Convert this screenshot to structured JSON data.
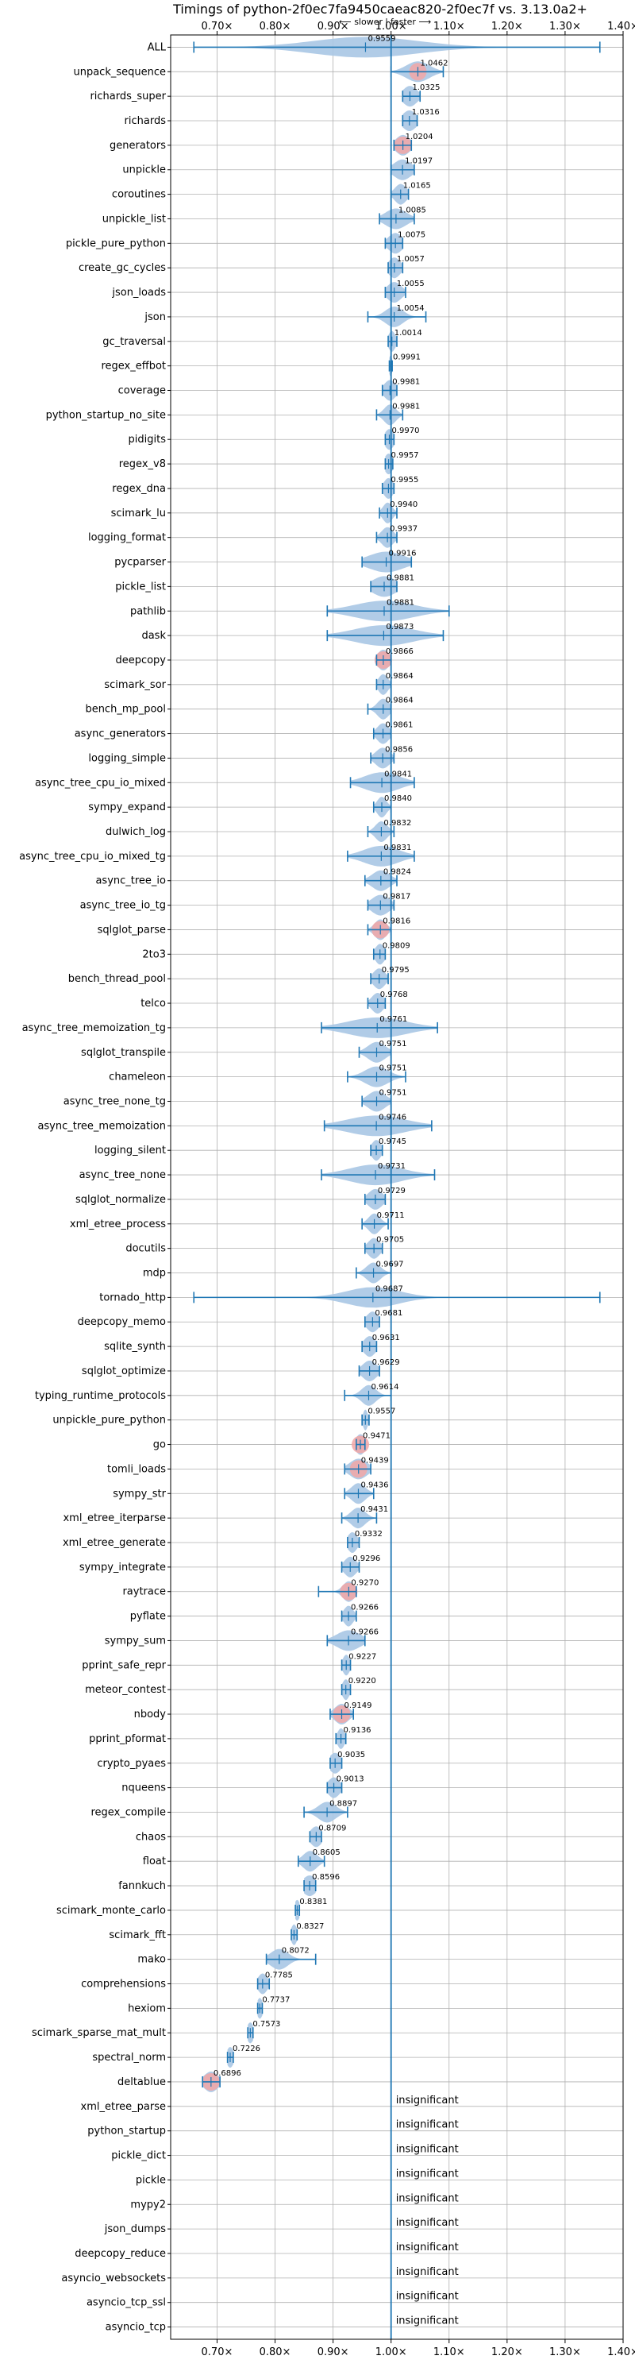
{
  "chart_data": {
    "type": "violin",
    "title": "Timings of python-2f0ec7fa9450caeac820-2f0ec7f vs. 3.13.0a2+",
    "direction_labels": {
      "slower": "⟵ slower",
      "separator": "|",
      "faster": "faster ⟶"
    },
    "xlim": [
      0.62,
      1.4
    ],
    "xticks": [
      0.7,
      0.8,
      0.9,
      1.0,
      1.1,
      1.2,
      1.3,
      1.4
    ],
    "xtick_labels": [
      "0.70×",
      "0.80×",
      "0.90×",
      "1.00×",
      "1.10×",
      "1.20×",
      "1.30×",
      "1.40×"
    ],
    "reference_line": 1.0,
    "colors": {
      "line": "#1f77b4",
      "violin": "#a9c6e4",
      "highlight": "#f2a6a6",
      "grid": "#b0b0b0"
    },
    "insignificant_label": "insignificant",
    "benchmarks": [
      {
        "name": "ALL",
        "value": 0.9559,
        "label": "0.9559",
        "min": 0.66,
        "max": 1.36,
        "spread": 0.09,
        "highlight": false
      },
      {
        "name": "unpack_sequence",
        "value": 1.0462,
        "label": "1.0462",
        "min": 1.0,
        "max": 1.09,
        "spread": 0.02,
        "highlight": true
      },
      {
        "name": "richards_super",
        "value": 1.0325,
        "label": "1.0325",
        "min": 1.02,
        "max": 1.05,
        "spread": 0.012,
        "highlight": false
      },
      {
        "name": "richards",
        "value": 1.0316,
        "label": "1.0316",
        "min": 1.02,
        "max": 1.045,
        "spread": 0.012,
        "highlight": false
      },
      {
        "name": "generators",
        "value": 1.0204,
        "label": "1.0204",
        "min": 1.005,
        "max": 1.035,
        "spread": 0.012,
        "highlight": true
      },
      {
        "name": "unpickle",
        "value": 1.0197,
        "label": "1.0197",
        "min": 1.0,
        "max": 1.04,
        "spread": 0.015,
        "highlight": false
      },
      {
        "name": "coroutines",
        "value": 1.0165,
        "label": "1.0165",
        "min": 1.0,
        "max": 1.03,
        "spread": 0.01,
        "highlight": false
      },
      {
        "name": "unpickle_list",
        "value": 1.0085,
        "label": "1.0085",
        "min": 0.98,
        "max": 1.04,
        "spread": 0.018,
        "highlight": false
      },
      {
        "name": "pickle_pure_python",
        "value": 1.0075,
        "label": "1.0075",
        "min": 0.99,
        "max": 1.02,
        "spread": 0.012,
        "highlight": false
      },
      {
        "name": "create_gc_cycles",
        "value": 1.0057,
        "label": "1.0057",
        "min": 0.995,
        "max": 1.02,
        "spread": 0.01,
        "highlight": false
      },
      {
        "name": "json_loads",
        "value": 1.0055,
        "label": "1.0055",
        "min": 0.99,
        "max": 1.025,
        "spread": 0.012,
        "highlight": false
      },
      {
        "name": "json",
        "value": 1.0054,
        "label": "1.0054",
        "min": 0.96,
        "max": 1.06,
        "spread": 0.015,
        "highlight": false
      },
      {
        "name": "gc_traversal",
        "value": 1.0014,
        "label": "1.0014",
        "min": 0.995,
        "max": 1.01,
        "spread": 0.006,
        "highlight": false
      },
      {
        "name": "regex_effbot",
        "value": 0.9991,
        "label": "0.9991",
        "min": 0.997,
        "max": 1.002,
        "spread": 0.003,
        "highlight": false
      },
      {
        "name": "coverage",
        "value": 0.9981,
        "label": "0.9981",
        "min": 0.985,
        "max": 1.01,
        "spread": 0.01,
        "highlight": false
      },
      {
        "name": "python_startup_no_site",
        "value": 0.9981,
        "label": "0.9981",
        "min": 0.975,
        "max": 1.02,
        "spread": 0.01,
        "highlight": false
      },
      {
        "name": "pidigits",
        "value": 0.997,
        "label": "0.9970",
        "min": 0.99,
        "max": 1.005,
        "spread": 0.008,
        "highlight": false
      },
      {
        "name": "regex_v8",
        "value": 0.9957,
        "label": "0.9957",
        "min": 0.99,
        "max": 1.003,
        "spread": 0.007,
        "highlight": false
      },
      {
        "name": "regex_dna",
        "value": 0.9955,
        "label": "0.9955",
        "min": 0.985,
        "max": 1.005,
        "spread": 0.008,
        "highlight": false
      },
      {
        "name": "scimark_lu",
        "value": 0.994,
        "label": "0.9940",
        "min": 0.98,
        "max": 1.01,
        "spread": 0.008,
        "highlight": false
      },
      {
        "name": "logging_format",
        "value": 0.9937,
        "label": "0.9937",
        "min": 0.975,
        "max": 1.01,
        "spread": 0.01,
        "highlight": false
      },
      {
        "name": "pycparser",
        "value": 0.9916,
        "label": "0.9916",
        "min": 0.95,
        "max": 1.035,
        "spread": 0.03,
        "highlight": false
      },
      {
        "name": "pickle_list",
        "value": 0.9881,
        "label": "0.9881",
        "min": 0.965,
        "max": 1.01,
        "spread": 0.02,
        "highlight": false
      },
      {
        "name": "pathlib",
        "value": 0.9881,
        "label": "0.9881",
        "min": 0.89,
        "max": 1.1,
        "spread": 0.05,
        "highlight": false
      },
      {
        "name": "dask",
        "value": 0.9873,
        "label": "0.9873",
        "min": 0.89,
        "max": 1.09,
        "spread": 0.05,
        "highlight": false
      },
      {
        "name": "deepcopy",
        "value": 0.9866,
        "label": "0.9866",
        "min": 0.975,
        "max": 1.0,
        "spread": 0.01,
        "highlight": true
      },
      {
        "name": "scimark_sor",
        "value": 0.9864,
        "label": "0.9864",
        "min": 0.975,
        "max": 1.0,
        "spread": 0.008,
        "highlight": false
      },
      {
        "name": "bench_mp_pool",
        "value": 0.9864,
        "label": "0.9864",
        "min": 0.96,
        "max": 1.0,
        "spread": 0.01,
        "highlight": false
      },
      {
        "name": "async_generators",
        "value": 0.9861,
        "label": "0.9861",
        "min": 0.97,
        "max": 1.0,
        "spread": 0.01,
        "highlight": false
      },
      {
        "name": "logging_simple",
        "value": 0.9856,
        "label": "0.9856",
        "min": 0.965,
        "max": 1.005,
        "spread": 0.012,
        "highlight": false
      },
      {
        "name": "async_tree_cpu_io_mixed",
        "value": 0.9841,
        "label": "0.9841",
        "min": 0.93,
        "max": 1.04,
        "spread": 0.03,
        "highlight": false
      },
      {
        "name": "sympy_expand",
        "value": 0.984,
        "label": "0.9840",
        "min": 0.97,
        "max": 1.0,
        "spread": 0.008,
        "highlight": false
      },
      {
        "name": "dulwich_log",
        "value": 0.9832,
        "label": "0.9832",
        "min": 0.96,
        "max": 1.005,
        "spread": 0.01,
        "highlight": false
      },
      {
        "name": "async_tree_cpu_io_mixed_tg",
        "value": 0.9831,
        "label": "0.9831",
        "min": 0.925,
        "max": 1.04,
        "spread": 0.03,
        "highlight": false
      },
      {
        "name": "async_tree_io",
        "value": 0.9824,
        "label": "0.9824",
        "min": 0.955,
        "max": 1.01,
        "spread": 0.015,
        "highlight": false
      },
      {
        "name": "async_tree_io_tg",
        "value": 0.9817,
        "label": "0.9817",
        "min": 0.96,
        "max": 1.005,
        "spread": 0.015,
        "highlight": false
      },
      {
        "name": "sqlglot_parse",
        "value": 0.9816,
        "label": "0.9816",
        "min": 0.96,
        "max": 1.0,
        "spread": 0.01,
        "highlight": true
      },
      {
        "name": "2to3",
        "value": 0.9809,
        "label": "0.9809",
        "min": 0.97,
        "max": 0.99,
        "spread": 0.008,
        "highlight": false
      },
      {
        "name": "bench_thread_pool",
        "value": 0.9795,
        "label": "0.9795",
        "min": 0.965,
        "max": 0.995,
        "spread": 0.01,
        "highlight": false
      },
      {
        "name": "telco",
        "value": 0.9768,
        "label": "0.9768",
        "min": 0.96,
        "max": 0.99,
        "spread": 0.01,
        "highlight": false
      },
      {
        "name": "async_tree_memoization_tg",
        "value": 0.9761,
        "label": "0.9761",
        "min": 0.88,
        "max": 1.08,
        "spread": 0.05,
        "highlight": false
      },
      {
        "name": "sqlglot_transpile",
        "value": 0.9751,
        "label": "0.9751",
        "min": 0.945,
        "max": 1.0,
        "spread": 0.015,
        "highlight": false
      },
      {
        "name": "chameleon",
        "value": 0.9751,
        "label": "0.9751",
        "min": 0.925,
        "max": 1.025,
        "spread": 0.02,
        "highlight": false
      },
      {
        "name": "async_tree_none_tg",
        "value": 0.9751,
        "label": "0.9751",
        "min": 0.95,
        "max": 1.0,
        "spread": 0.015,
        "highlight": false
      },
      {
        "name": "async_tree_memoization",
        "value": 0.9746,
        "label": "0.9746",
        "min": 0.885,
        "max": 1.07,
        "spread": 0.05,
        "highlight": false
      },
      {
        "name": "logging_silent",
        "value": 0.9745,
        "label": "0.9745",
        "min": 0.965,
        "max": 0.985,
        "spread": 0.008,
        "highlight": false
      },
      {
        "name": "async_tree_none",
        "value": 0.9731,
        "label": "0.9731",
        "min": 0.88,
        "max": 1.075,
        "spread": 0.045,
        "highlight": false
      },
      {
        "name": "sqlglot_normalize",
        "value": 0.9729,
        "label": "0.9729",
        "min": 0.955,
        "max": 0.99,
        "spread": 0.012,
        "highlight": false
      },
      {
        "name": "xml_etree_process",
        "value": 0.9711,
        "label": "0.9711",
        "min": 0.95,
        "max": 0.995,
        "spread": 0.01,
        "highlight": false
      },
      {
        "name": "docutils",
        "value": 0.9705,
        "label": "0.9705",
        "min": 0.955,
        "max": 0.985,
        "spread": 0.01,
        "highlight": false
      },
      {
        "name": "mdp",
        "value": 0.9697,
        "label": "0.9697",
        "min": 0.94,
        "max": 1.0,
        "spread": 0.012,
        "highlight": false
      },
      {
        "name": "tornado_http",
        "value": 0.9687,
        "label": "0.9687",
        "min": 0.66,
        "max": 1.36,
        "spread": 0.045,
        "highlight": false
      },
      {
        "name": "deepcopy_memo",
        "value": 0.9681,
        "label": "0.9681",
        "min": 0.955,
        "max": 0.98,
        "spread": 0.01,
        "highlight": false
      },
      {
        "name": "sqlite_synth",
        "value": 0.9631,
        "label": "0.9631",
        "min": 0.95,
        "max": 0.975,
        "spread": 0.01,
        "highlight": false
      },
      {
        "name": "sqlglot_optimize",
        "value": 0.9629,
        "label": "0.9629",
        "min": 0.945,
        "max": 0.98,
        "spread": 0.012,
        "highlight": false
      },
      {
        "name": "typing_runtime_protocols",
        "value": 0.9614,
        "label": "0.9614",
        "min": 0.92,
        "max": 1.0,
        "spread": 0.012,
        "highlight": false
      },
      {
        "name": "unpickle_pure_python",
        "value": 0.9557,
        "label": "0.9557",
        "min": 0.95,
        "max": 0.962,
        "spread": 0.004,
        "highlight": false
      },
      {
        "name": "go",
        "value": 0.9471,
        "label": "0.9471",
        "min": 0.94,
        "max": 0.955,
        "spread": 0.008,
        "highlight": true
      },
      {
        "name": "tomli_loads",
        "value": 0.9439,
        "label": "0.9439",
        "min": 0.92,
        "max": 0.965,
        "spread": 0.015,
        "highlight": true
      },
      {
        "name": "sympy_str",
        "value": 0.9436,
        "label": "0.9436",
        "min": 0.92,
        "max": 0.97,
        "spread": 0.012,
        "highlight": false
      },
      {
        "name": "xml_etree_iterparse",
        "value": 0.9431,
        "label": "0.9431",
        "min": 0.915,
        "max": 0.975,
        "spread": 0.012,
        "highlight": false
      },
      {
        "name": "xml_etree_generate",
        "value": 0.9332,
        "label": "0.9332",
        "min": 0.925,
        "max": 0.945,
        "spread": 0.008,
        "highlight": false
      },
      {
        "name": "sympy_integrate",
        "value": 0.9296,
        "label": "0.9296",
        "min": 0.915,
        "max": 0.945,
        "spread": 0.01,
        "highlight": false
      },
      {
        "name": "raytrace",
        "value": 0.927,
        "label": "0.9270",
        "min": 0.875,
        "max": 0.94,
        "spread": 0.01,
        "highlight": true
      },
      {
        "name": "pyflate",
        "value": 0.9266,
        "label": "0.9266",
        "min": 0.915,
        "max": 0.94,
        "spread": 0.008,
        "highlight": false
      },
      {
        "name": "sympy_sum",
        "value": 0.9266,
        "label": "0.9266",
        "min": 0.89,
        "max": 0.955,
        "spread": 0.02,
        "highlight": false
      },
      {
        "name": "pprint_safe_repr",
        "value": 0.9227,
        "label": "0.9227",
        "min": 0.915,
        "max": 0.93,
        "spread": 0.006,
        "highlight": false
      },
      {
        "name": "meteor_contest",
        "value": 0.922,
        "label": "0.9220",
        "min": 0.915,
        "max": 0.93,
        "spread": 0.006,
        "highlight": false
      },
      {
        "name": "nbody",
        "value": 0.9149,
        "label": "0.9149",
        "min": 0.895,
        "max": 0.935,
        "spread": 0.012,
        "highlight": true
      },
      {
        "name": "pprint_pformat",
        "value": 0.9136,
        "label": "0.9136",
        "min": 0.905,
        "max": 0.922,
        "spread": 0.006,
        "highlight": false
      },
      {
        "name": "crypto_pyaes",
        "value": 0.9035,
        "label": "0.9035",
        "min": 0.895,
        "max": 0.915,
        "spread": 0.01,
        "highlight": false
      },
      {
        "name": "nqueens",
        "value": 0.9013,
        "label": "0.9013",
        "min": 0.89,
        "max": 0.915,
        "spread": 0.01,
        "highlight": false
      },
      {
        "name": "regex_compile",
        "value": 0.8897,
        "label": "0.8897",
        "min": 0.85,
        "max": 0.925,
        "spread": 0.015,
        "highlight": false
      },
      {
        "name": "chaos",
        "value": 0.8709,
        "label": "0.8709",
        "min": 0.86,
        "max": 0.88,
        "spread": 0.01,
        "highlight": false
      },
      {
        "name": "float",
        "value": 0.8605,
        "label": "0.8605",
        "min": 0.84,
        "max": 0.885,
        "spread": 0.012,
        "highlight": false
      },
      {
        "name": "fannkuch",
        "value": 0.8596,
        "label": "0.8596",
        "min": 0.85,
        "max": 0.87,
        "spread": 0.012,
        "highlight": false
      },
      {
        "name": "scimark_monte_carlo",
        "value": 0.8381,
        "label": "0.8381",
        "min": 0.835,
        "max": 0.842,
        "spread": 0.005,
        "highlight": false
      },
      {
        "name": "scimark_fft",
        "value": 0.8327,
        "label": "0.8327",
        "min": 0.828,
        "max": 0.838,
        "spread": 0.005,
        "highlight": false
      },
      {
        "name": "mako",
        "value": 0.8072,
        "label": "0.8072",
        "min": 0.785,
        "max": 0.87,
        "spread": 0.015,
        "highlight": false
      },
      {
        "name": "comprehensions",
        "value": 0.7785,
        "label": "0.7785",
        "min": 0.77,
        "max": 0.79,
        "spread": 0.008,
        "highlight": false
      },
      {
        "name": "hexiom",
        "value": 0.7737,
        "label": "0.7737",
        "min": 0.77,
        "max": 0.778,
        "spread": 0.005,
        "highlight": false
      },
      {
        "name": "scimark_sparse_mat_mult",
        "value": 0.7573,
        "label": "0.7573",
        "min": 0.753,
        "max": 0.762,
        "spread": 0.006,
        "highlight": false
      },
      {
        "name": "spectral_norm",
        "value": 0.7226,
        "label": "0.7226",
        "min": 0.718,
        "max": 0.728,
        "spread": 0.006,
        "highlight": false
      },
      {
        "name": "deltablue",
        "value": 0.6896,
        "label": "0.6896",
        "min": 0.675,
        "max": 0.705,
        "spread": 0.012,
        "highlight": true
      },
      {
        "name": "xml_etree_parse",
        "value": null,
        "insignificant": true
      },
      {
        "name": "python_startup",
        "value": null,
        "insignificant": true
      },
      {
        "name": "pickle_dict",
        "value": null,
        "insignificant": true
      },
      {
        "name": "pickle",
        "value": null,
        "insignificant": true
      },
      {
        "name": "mypy2",
        "value": null,
        "insignificant": true
      },
      {
        "name": "json_dumps",
        "value": null,
        "insignificant": true
      },
      {
        "name": "deepcopy_reduce",
        "value": null,
        "insignificant": true
      },
      {
        "name": "asyncio_websockets",
        "value": null,
        "insignificant": true
      },
      {
        "name": "asyncio_tcp_ssl",
        "value": null,
        "insignificant": true
      },
      {
        "name": "asyncio_tcp",
        "value": null,
        "insignificant": true
      }
    ]
  }
}
